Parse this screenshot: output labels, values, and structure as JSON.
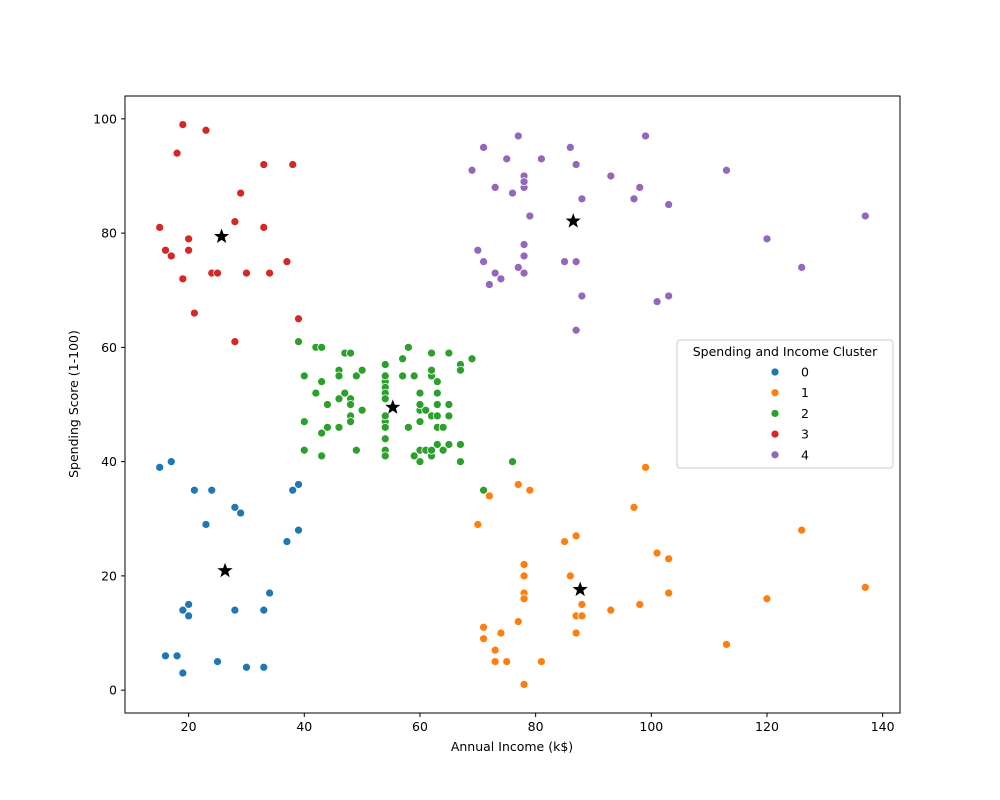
{
  "chart_data": {
    "type": "scatter",
    "title": "",
    "xlabel": "Annual Income (k$)",
    "ylabel": "Spending Score (1-100)",
    "xlim": [
      9,
      143
    ],
    "ylim": [
      -4,
      104
    ],
    "xticks": [
      20,
      40,
      60,
      80,
      100,
      120,
      140
    ],
    "yticks": [
      0,
      20,
      40,
      60,
      80,
      100
    ],
    "grid": false,
    "legend": {
      "title": "Spending and Income Cluster",
      "placement": "center-right"
    },
    "series": [
      {
        "name": "0",
        "color": "#1f77b4",
        "points": [
          [
            15,
            39
          ],
          [
            16,
            6
          ],
          [
            17,
            40
          ],
          [
            18,
            6
          ],
          [
            19,
            3
          ],
          [
            19,
            14
          ],
          [
            20,
            15
          ],
          [
            20,
            13
          ],
          [
            21,
            35
          ],
          [
            23,
            29
          ],
          [
            24,
            35
          ],
          [
            25,
            5
          ],
          [
            28,
            14
          ],
          [
            28,
            32
          ],
          [
            29,
            31
          ],
          [
            30,
            4
          ],
          [
            33,
            4
          ],
          [
            33,
            14
          ],
          [
            34,
            17
          ],
          [
            37,
            26
          ],
          [
            38,
            35
          ],
          [
            39,
            36
          ],
          [
            39,
            28
          ]
        ]
      },
      {
        "name": "1",
        "color": "#ff7f0e",
        "points": [
          [
            70,
            29
          ],
          [
            71,
            11
          ],
          [
            71,
            9
          ],
          [
            72,
            34
          ],
          [
            73,
            5
          ],
          [
            73,
            7
          ],
          [
            74,
            10
          ],
          [
            75,
            5
          ],
          [
            77,
            12
          ],
          [
            77,
            36
          ],
          [
            78,
            22
          ],
          [
            78,
            20
          ],
          [
            78,
            17
          ],
          [
            78,
            16
          ],
          [
            78,
            1
          ],
          [
            79,
            35
          ],
          [
            81,
            5
          ],
          [
            85,
            26
          ],
          [
            86,
            20
          ],
          [
            87,
            27
          ],
          [
            87,
            13
          ],
          [
            87,
            10
          ],
          [
            88,
            15
          ],
          [
            88,
            13
          ],
          [
            93,
            14
          ],
          [
            97,
            32
          ],
          [
            98,
            15
          ],
          [
            99,
            39
          ],
          [
            101,
            24
          ],
          [
            103,
            23
          ],
          [
            103,
            17
          ],
          [
            113,
            8
          ],
          [
            120,
            16
          ],
          [
            126,
            28
          ],
          [
            137,
            18
          ]
        ]
      },
      {
        "name": "2",
        "color": "#2ca02c",
        "points": [
          [
            39,
            61
          ],
          [
            40,
            55
          ],
          [
            40,
            47
          ],
          [
            40,
            42
          ],
          [
            42,
            52
          ],
          [
            42,
            60
          ],
          [
            43,
            60
          ],
          [
            43,
            54
          ],
          [
            43,
            45
          ],
          [
            43,
            41
          ],
          [
            44,
            50
          ],
          [
            44,
            46
          ],
          [
            46,
            51
          ],
          [
            46,
            46
          ],
          [
            46,
            56
          ],
          [
            46,
            55
          ],
          [
            47,
            52
          ],
          [
            47,
            59
          ],
          [
            48,
            51
          ],
          [
            48,
            59
          ],
          [
            48,
            50
          ],
          [
            48,
            48
          ],
          [
            48,
            59
          ],
          [
            48,
            47
          ],
          [
            49,
            55
          ],
          [
            49,
            42
          ],
          [
            50,
            49
          ],
          [
            50,
            56
          ],
          [
            54,
            47
          ],
          [
            54,
            54
          ],
          [
            54,
            53
          ],
          [
            54,
            48
          ],
          [
            54,
            52
          ],
          [
            54,
            42
          ],
          [
            54,
            51
          ],
          [
            54,
            55
          ],
          [
            54,
            41
          ],
          [
            54,
            44
          ],
          [
            54,
            57
          ],
          [
            54,
            46
          ],
          [
            57,
            58
          ],
          [
            57,
            55
          ],
          [
            58,
            60
          ],
          [
            58,
            46
          ],
          [
            59,
            55
          ],
          [
            59,
            41
          ],
          [
            60,
            49
          ],
          [
            60,
            40
          ],
          [
            60,
            42
          ],
          [
            60,
            52
          ],
          [
            60,
            47
          ],
          [
            60,
            50
          ],
          [
            61,
            42
          ],
          [
            61,
            49
          ],
          [
            62,
            41
          ],
          [
            62,
            48
          ],
          [
            62,
            59
          ],
          [
            62,
            55
          ],
          [
            62,
            56
          ],
          [
            62,
            42
          ],
          [
            63,
            50
          ],
          [
            63,
            46
          ],
          [
            63,
            43
          ],
          [
            63,
            48
          ],
          [
            63,
            52
          ],
          [
            63,
            54
          ],
          [
            64,
            42
          ],
          [
            64,
            46
          ],
          [
            65,
            48
          ],
          [
            65,
            50
          ],
          [
            65,
            43
          ],
          [
            65,
            59
          ],
          [
            67,
            43
          ],
          [
            67,
            57
          ],
          [
            67,
            56
          ],
          [
            67,
            40
          ],
          [
            69,
            58
          ],
          [
            71,
            35
          ],
          [
            76,
            40
          ]
        ]
      },
      {
        "name": "3",
        "color": "#d62728",
        "points": [
          [
            15,
            81
          ],
          [
            16,
            77
          ],
          [
            17,
            76
          ],
          [
            18,
            94
          ],
          [
            19,
            72
          ],
          [
            19,
            99
          ],
          [
            20,
            77
          ],
          [
            20,
            79
          ],
          [
            21,
            66
          ],
          [
            23,
            98
          ],
          [
            24,
            73
          ],
          [
            25,
            73
          ],
          [
            28,
            82
          ],
          [
            28,
            61
          ],
          [
            29,
            87
          ],
          [
            30,
            73
          ],
          [
            33,
            92
          ],
          [
            33,
            81
          ],
          [
            34,
            73
          ],
          [
            37,
            75
          ],
          [
            38,
            92
          ],
          [
            39,
            65
          ]
        ]
      },
      {
        "name": "4",
        "color": "#9467bd",
        "points": [
          [
            69,
            91
          ],
          [
            70,
            77
          ],
          [
            71,
            95
          ],
          [
            71,
            75
          ],
          [
            72,
            71
          ],
          [
            73,
            88
          ],
          [
            73,
            73
          ],
          [
            74,
            72
          ],
          [
            75,
            93
          ],
          [
            76,
            87
          ],
          [
            77,
            97
          ],
          [
            77,
            74
          ],
          [
            78,
            90
          ],
          [
            78,
            88
          ],
          [
            78,
            89
          ],
          [
            78,
            78
          ],
          [
            78,
            73
          ],
          [
            78,
            76
          ],
          [
            79,
            83
          ],
          [
            81,
            93
          ],
          [
            85,
            75
          ],
          [
            86,
            95
          ],
          [
            87,
            92
          ],
          [
            87,
            75
          ],
          [
            87,
            63
          ],
          [
            88,
            86
          ],
          [
            88,
            69
          ],
          [
            93,
            90
          ],
          [
            97,
            86
          ],
          [
            98,
            88
          ],
          [
            99,
            97
          ],
          [
            101,
            68
          ],
          [
            103,
            85
          ],
          [
            103,
            69
          ],
          [
            113,
            91
          ],
          [
            120,
            79
          ],
          [
            126,
            74
          ],
          [
            137,
            83
          ]
        ]
      }
    ],
    "centroids": {
      "marker": "star",
      "color": "#000000",
      "points": [
        [
          26.3,
          20.9
        ],
        [
          87.7,
          17.6
        ],
        [
          55.3,
          49.5
        ],
        [
          25.7,
          79.4
        ],
        [
          86.5,
          82.1
        ]
      ]
    }
  }
}
